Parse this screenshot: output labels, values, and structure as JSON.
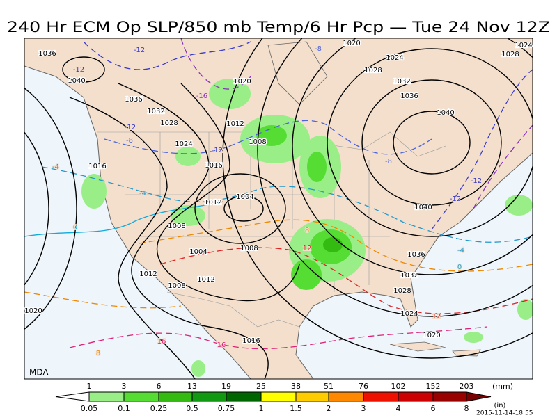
{
  "header": {
    "title": "240 Hr ECM Op SLP/850 mb Temp/6 Hr Pcp — Tue 24 Nov 12Z"
  },
  "map": {
    "credit": "MDA",
    "isobar_labels": [
      "1036",
      "1040",
      "1036",
      "1032",
      "1028",
      "1024",
      "1020",
      "1012",
      "1008",
      "1016",
      "1016",
      "1004",
      "1012",
      "1008",
      "1004",
      "1008",
      "1012",
      "1008",
      "1012",
      "1020",
      "1016",
      "1020",
      "1024",
      "1028",
      "1032",
      "1036",
      "1040",
      "1040",
      "1036",
      "1032",
      "1028",
      "1024",
      "1020",
      "1024",
      "1028"
    ],
    "temp_labels": [
      {
        "text": "-12",
        "color": "#3a3acc"
      },
      {
        "text": "-8",
        "color": "#4a62dd"
      },
      {
        "text": "-12",
        "color": "#3a3acc"
      },
      {
        "text": "-16",
        "color": "#8833bb"
      },
      {
        "text": "-12",
        "color": "#3a3acc"
      },
      {
        "text": "-8",
        "color": "#4a62dd"
      },
      {
        "text": "-12",
        "color": "#3a3acc"
      },
      {
        "text": "-4",
        "color": "#2299cc"
      },
      {
        "text": "-4",
        "color": "#2299cc"
      },
      {
        "text": "0",
        "color": "#11aadd"
      },
      {
        "text": "-12",
        "color": "#3a3acc"
      },
      {
        "text": "-12",
        "color": "#3a3acc"
      },
      {
        "text": "-4",
        "color": "#2299cc"
      },
      {
        "text": "0",
        "color": "#11aadd"
      },
      {
        "text": "8",
        "color": "#ee8800"
      },
      {
        "text": "12",
        "color": "#dd2222"
      },
      {
        "text": "12",
        "color": "#dd2222"
      },
      {
        "text": "16",
        "color": "#dd2277"
      },
      {
        "text": "16",
        "color": "#dd2277"
      },
      {
        "text": "8",
        "color": "#ee8800"
      },
      {
        "text": "-8",
        "color": "#4a62dd"
      }
    ]
  },
  "legend": {
    "mm_labels": [
      "1",
      "3",
      "6",
      "13",
      "19",
      "25",
      "38",
      "51",
      "76",
      "102",
      "152",
      "203"
    ],
    "mm_unit": "(mm)",
    "in_labels": [
      "0.05",
      "0.1",
      "0.25",
      "0.5",
      "0.75",
      "1",
      "1.5",
      "2",
      "3",
      "4",
      "6",
      "8"
    ],
    "in_unit": "(in)",
    "colors": [
      "#ffffff",
      "#99ee88",
      "#55dd33",
      "#33bb11",
      "#119911",
      "#006600",
      "#ffff00",
      "#ffcc00",
      "#ff8800",
      "#ee1100",
      "#cc0000",
      "#990000",
      "#770000"
    ],
    "timestamp": "2015-11-14-18:55"
  }
}
